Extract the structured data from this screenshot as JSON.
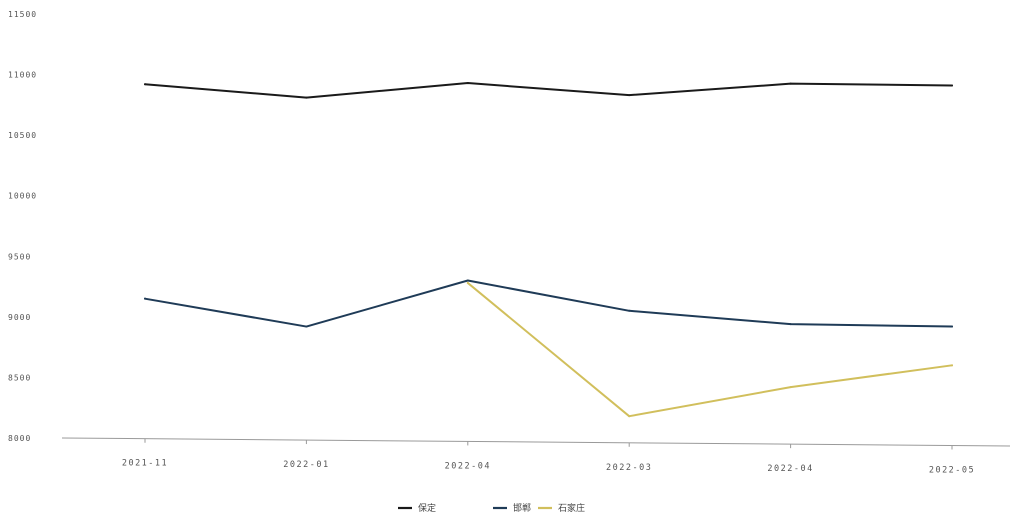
{
  "chart_data": {
    "type": "line",
    "categories": [
      "2021-11",
      "2022-01",
      "2022-04",
      "2022-03",
      "2022-04",
      "2022-05"
    ],
    "ylim": [
      8000,
      11500
    ],
    "yticks": [
      8000,
      8500,
      9000,
      9500,
      10000,
      10500,
      11000,
      11500
    ],
    "ytick_labels": [
      "8000",
      "8500",
      "9000",
      "9500",
      "10000",
      "10500",
      "11000",
      "11500"
    ],
    "grid": false,
    "legend_position": "bottom-center",
    "series": [
      {
        "name": "保定",
        "color": "#1a1a1a",
        "values": [
          10920,
          10810,
          10930,
          10830,
          10925,
          10910
        ]
      },
      {
        "name": "邯郸",
        "color": "#1f3b57",
        "values": [
          9150,
          8920,
          9300,
          9050,
          8940,
          8920
        ]
      },
      {
        "name": "石家庄",
        "color": "#d1bf5c",
        "values": [
          null,
          null,
          9280,
          8180,
          8420,
          8600
        ]
      }
    ]
  }
}
